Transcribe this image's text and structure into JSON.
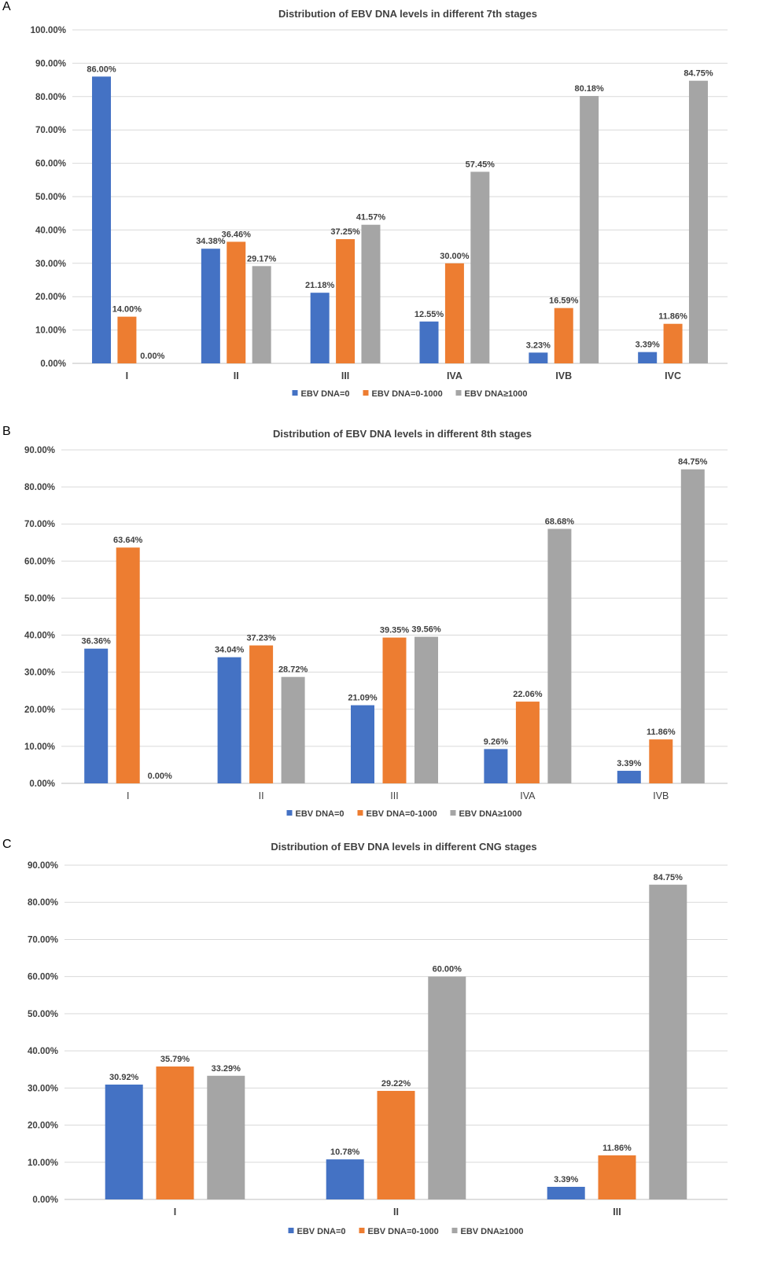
{
  "colors": {
    "zero": "#4472C4",
    "low": "#ED7D31",
    "high": "#A5A5A5",
    "grid": "#D9D9D9",
    "axis": "#BFBFBF",
    "text": "#404040"
  },
  "panels": [
    {
      "letter": "A"
    },
    {
      "letter": "B"
    },
    {
      "letter": "C"
    }
  ],
  "chart_data": [
    {
      "type": "bar",
      "title": "Distribution of EBV DNA levels in different 7th stages",
      "categories": [
        "I",
        "II",
        "III",
        "IVA",
        "IVB",
        "IVC"
      ],
      "ylim": [
        0,
        100
      ],
      "yticks": [
        "0.00%",
        "10.00%",
        "20.00%",
        "30.00%",
        "40.00%",
        "50.00%",
        "60.00%",
        "70.00%",
        "80.00%",
        "90.00%",
        "100.00%"
      ],
      "series": [
        {
          "name": "EBV DNA=0",
          "values": [
            86.0,
            34.38,
            21.18,
            12.55,
            3.23,
            3.39
          ],
          "labels": [
            "86.00%",
            "34.38%",
            "21.18%",
            "12.55%",
            "3.23%",
            "3.39%"
          ]
        },
        {
          "name": "EBV DNA=0-1000",
          "values": [
            14.0,
            36.46,
            37.25,
            30.0,
            16.59,
            11.86
          ],
          "labels": [
            "14.00%",
            "36.46%",
            "37.25%",
            "30.00%",
            "16.59%",
            "11.86%"
          ]
        },
        {
          "name": "EBV DNA≥1000",
          "values": [
            0.0,
            29.17,
            41.57,
            57.45,
            80.18,
            84.75
          ],
          "labels": [
            "0.00%",
            "29.17%",
            "41.57%",
            "57.45%",
            "80.18%",
            "84.75%"
          ]
        }
      ],
      "grid": true,
      "legend": "bottom",
      "bold_category_labels": true
    },
    {
      "type": "bar",
      "title": "Distribution of EBV DNA levels in different 8th stages",
      "categories": [
        "I",
        "II",
        "III",
        "IVA",
        "IVB"
      ],
      "ylim": [
        0,
        90
      ],
      "yticks": [
        "0.00%",
        "10.00%",
        "20.00%",
        "30.00%",
        "40.00%",
        "50.00%",
        "60.00%",
        "70.00%",
        "80.00%",
        "90.00%"
      ],
      "series": [
        {
          "name": "EBV DNA=0",
          "values": [
            36.36,
            34.04,
            21.09,
            9.26,
            3.39
          ],
          "labels": [
            "36.36%",
            "34.04%",
            "21.09%",
            "9.26%",
            "3.39%"
          ]
        },
        {
          "name": "EBV DNA=0-1000",
          "values": [
            63.64,
            37.23,
            39.35,
            22.06,
            11.86
          ],
          "labels": [
            "63.64%",
            "37.23%",
            "39.35%",
            "22.06%",
            "11.86%"
          ]
        },
        {
          "name": "EBV DNA≥1000",
          "values": [
            0.0,
            28.72,
            39.56,
            68.68,
            84.75
          ],
          "labels": [
            "0.00%",
            "28.72%",
            "39.56%",
            "68.68%",
            "84.75%"
          ]
        }
      ],
      "grid": true,
      "legend": "bottom",
      "bold_category_labels": false
    },
    {
      "type": "bar",
      "title": "Distribution of EBV DNA levels in different CNG stages",
      "categories": [
        "I",
        "II",
        "III"
      ],
      "ylim": [
        0,
        90
      ],
      "yticks": [
        "0.00%",
        "10.00%",
        "20.00%",
        "30.00%",
        "40.00%",
        "50.00%",
        "60.00%",
        "70.00%",
        "80.00%",
        "90.00%"
      ],
      "series": [
        {
          "name": "EBV DNA=0",
          "values": [
            30.92,
            10.78,
            3.39
          ],
          "labels": [
            "30.92%",
            "10.78%",
            "3.39%"
          ]
        },
        {
          "name": "EBV DNA=0-1000",
          "values": [
            35.79,
            29.22,
            11.86
          ],
          "labels": [
            "35.79%",
            "29.22%",
            "11.86%"
          ]
        },
        {
          "name": "EBV DNA≥1000",
          "values": [
            33.29,
            60.0,
            84.75
          ],
          "labels": [
            "33.29%",
            "60.00%",
            "84.75%"
          ]
        }
      ],
      "grid": true,
      "legend": "bottom",
      "bold_category_labels": true
    }
  ]
}
